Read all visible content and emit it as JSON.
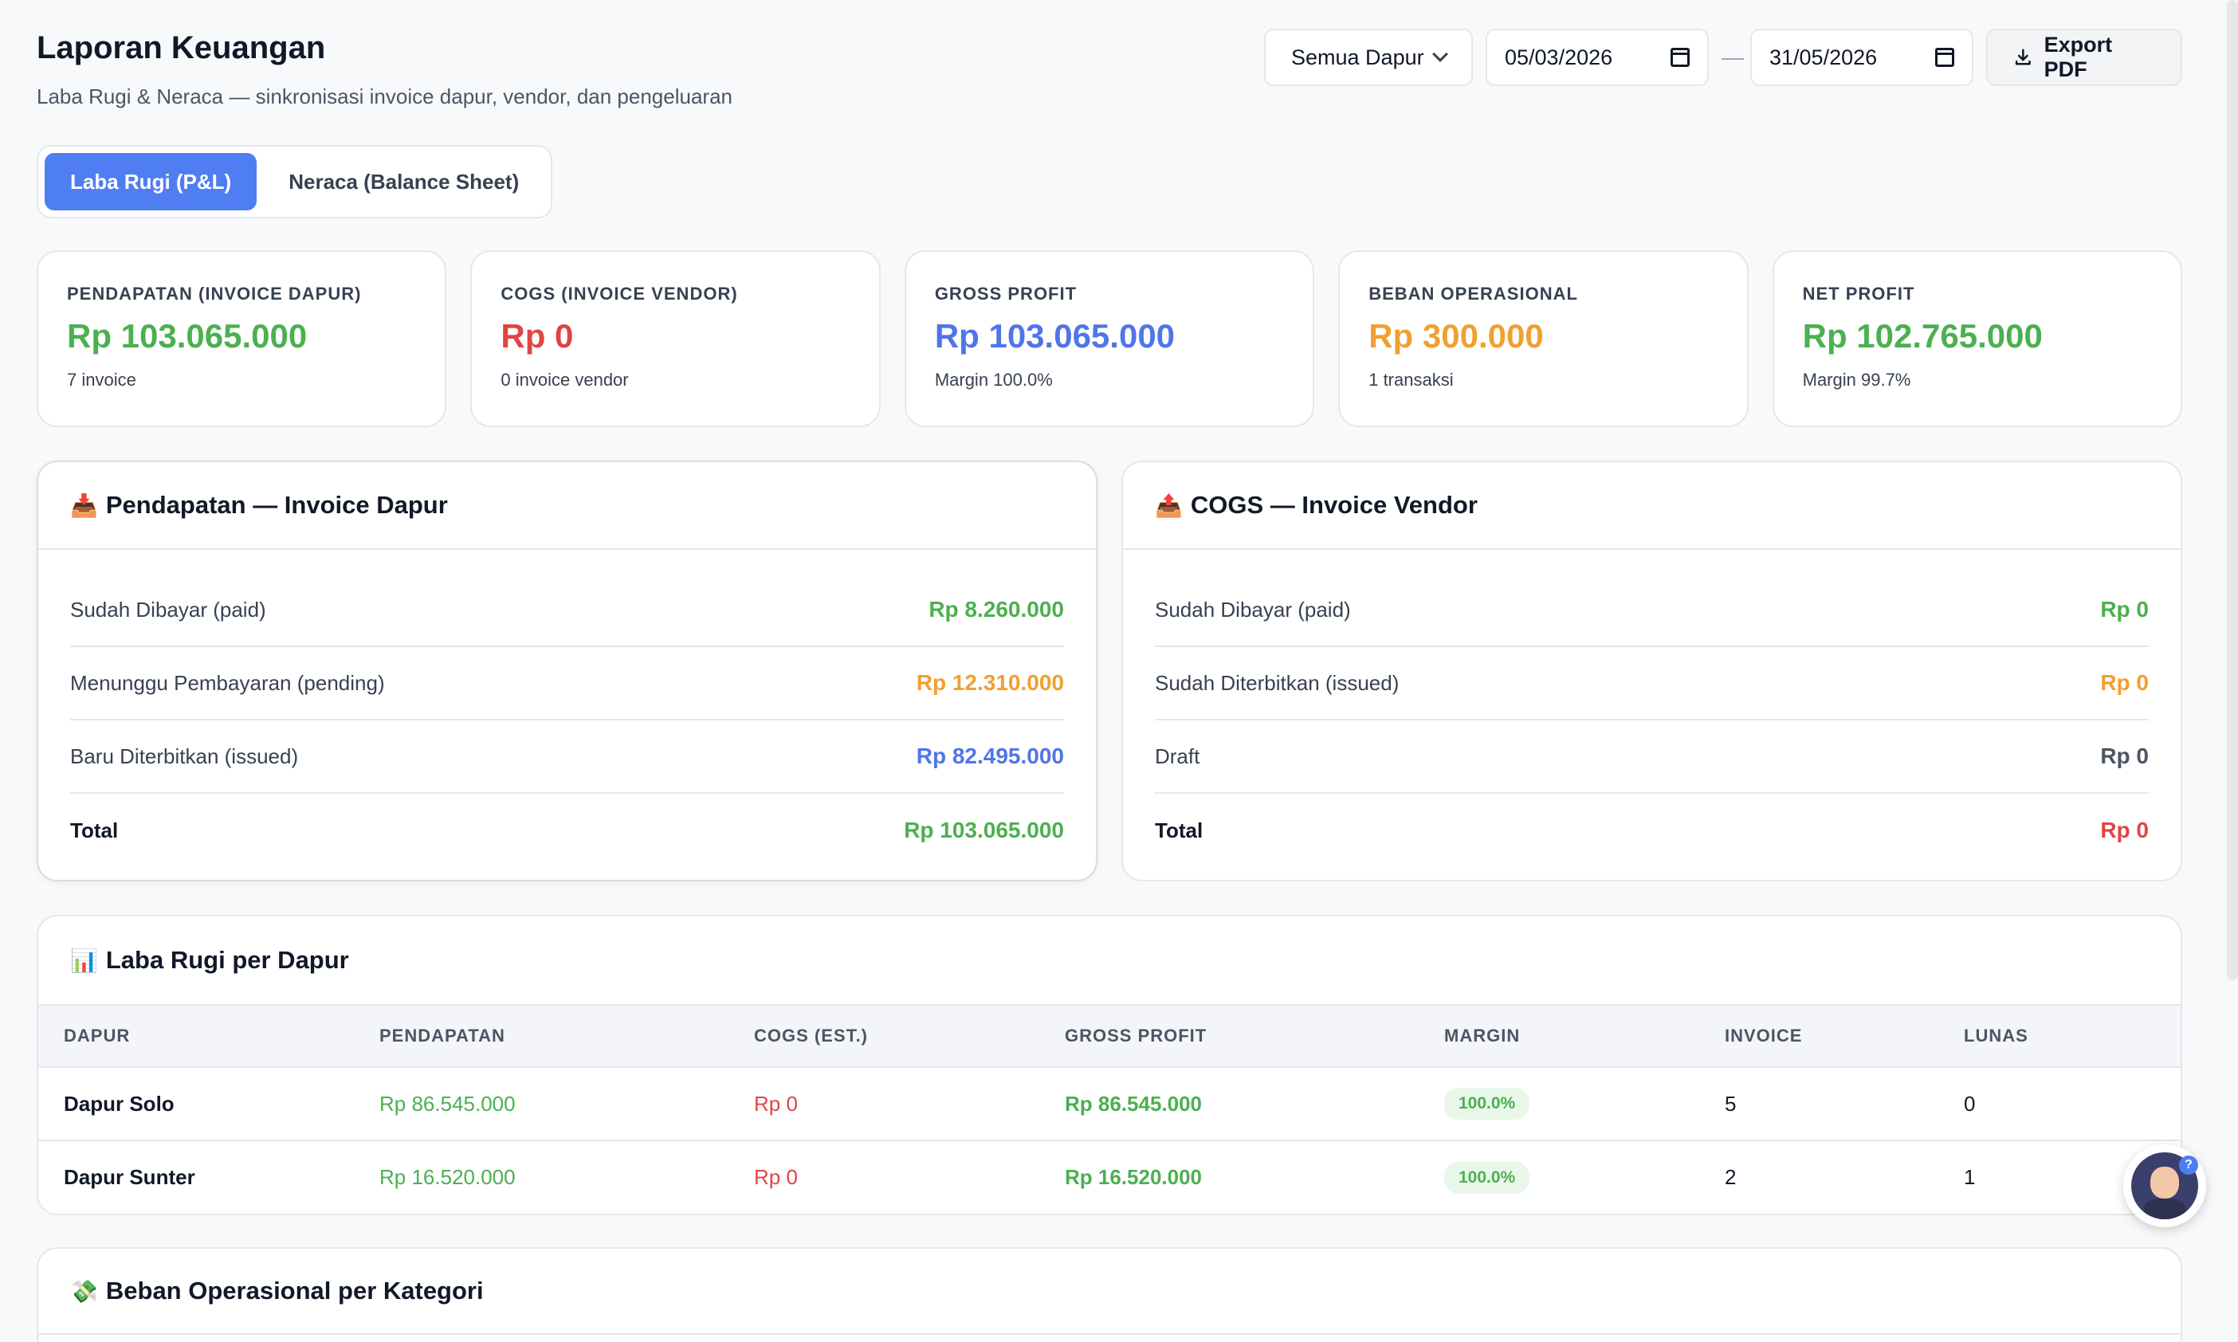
{
  "header": {
    "title": "Laporan Keuangan",
    "subtitle": "Laba Rugi & Neraca — sinkronisasi invoice dapur, vendor, dan pengeluaran",
    "kitchen_select": "Semua Dapur",
    "date_from": "05/03/2026",
    "date_to": "31/05/2026",
    "separator": "—",
    "export_label": "Export PDF"
  },
  "tabs": [
    {
      "label": "Laba Rugi (P&L)",
      "active": true
    },
    {
      "label": "Neraca (Balance Sheet)",
      "active": false
    }
  ],
  "kpis": [
    {
      "label": "PENDAPATAN (INVOICE DAPUR)",
      "value": "Rp 103.065.000",
      "note": "7 invoice",
      "color": "#4caf50"
    },
    {
      "label": "COGS (INVOICE VENDOR)",
      "value": "Rp 0",
      "note": "0 invoice vendor",
      "color": "#e04444"
    },
    {
      "label": "GROSS PROFIT",
      "value": "Rp 103.065.000",
      "note": "Margin 100.0%",
      "color": "#4f75e8"
    },
    {
      "label": "BEBAN OPERASIONAL",
      "value": "Rp 300.000",
      "note": "1 transaksi",
      "color": "#f0a030"
    },
    {
      "label": "NET PROFIT",
      "value": "Rp 102.765.000",
      "note": "Margin 99.7%",
      "color": "#4caf50"
    }
  ],
  "revenue_panel": {
    "icon": "📥",
    "title": "Pendapatan — Invoice Dapur",
    "rows": [
      {
        "label": "Sudah Dibayar (paid)",
        "amount": "Rp 8.260.000"
      },
      {
        "label": "Menunggu Pembayaran (pending)",
        "amount": "Rp 12.310.000"
      },
      {
        "label": "Baru Diterbitkan (issued)",
        "amount": "Rp 82.495.000"
      },
      {
        "label": "Total",
        "amount": "Rp 103.065.000"
      }
    ]
  },
  "cogs_panel": {
    "icon": "📤",
    "title": "COGS — Invoice Vendor",
    "rows": [
      {
        "label": "Sudah Dibayar (paid)",
        "amount": "Rp 0"
      },
      {
        "label": "Sudah Diterbitkan (issued)",
        "amount": "Rp 0"
      },
      {
        "label": "Draft",
        "amount": "Rp 0"
      },
      {
        "label": "Total",
        "amount": "Rp 0"
      }
    ]
  },
  "per_kitchen": {
    "icon": "📊",
    "title": "Laba Rugi per Dapur",
    "columns": [
      "DAPUR",
      "PENDAPATAN",
      "COGS (EST.)",
      "GROSS PROFIT",
      "MARGIN",
      "INVOICE",
      "LUNAS"
    ],
    "rows": [
      {
        "dapur": "Dapur Solo",
        "pendapatan": "Rp 86.545.000",
        "cogs": "Rp 0",
        "gross": "Rp 86.545.000",
        "margin": "100.0%",
        "invoice": "5",
        "lunas": "0"
      },
      {
        "dapur": "Dapur Sunter",
        "pendapatan": "Rp 16.520.000",
        "cogs": "Rp 0",
        "gross": "Rp 16.520.000",
        "margin": "100.0%",
        "invoice": "2",
        "lunas": "1"
      }
    ]
  },
  "expense_section": {
    "icon": "💸",
    "title": "Beban Operasional per Kategori"
  }
}
